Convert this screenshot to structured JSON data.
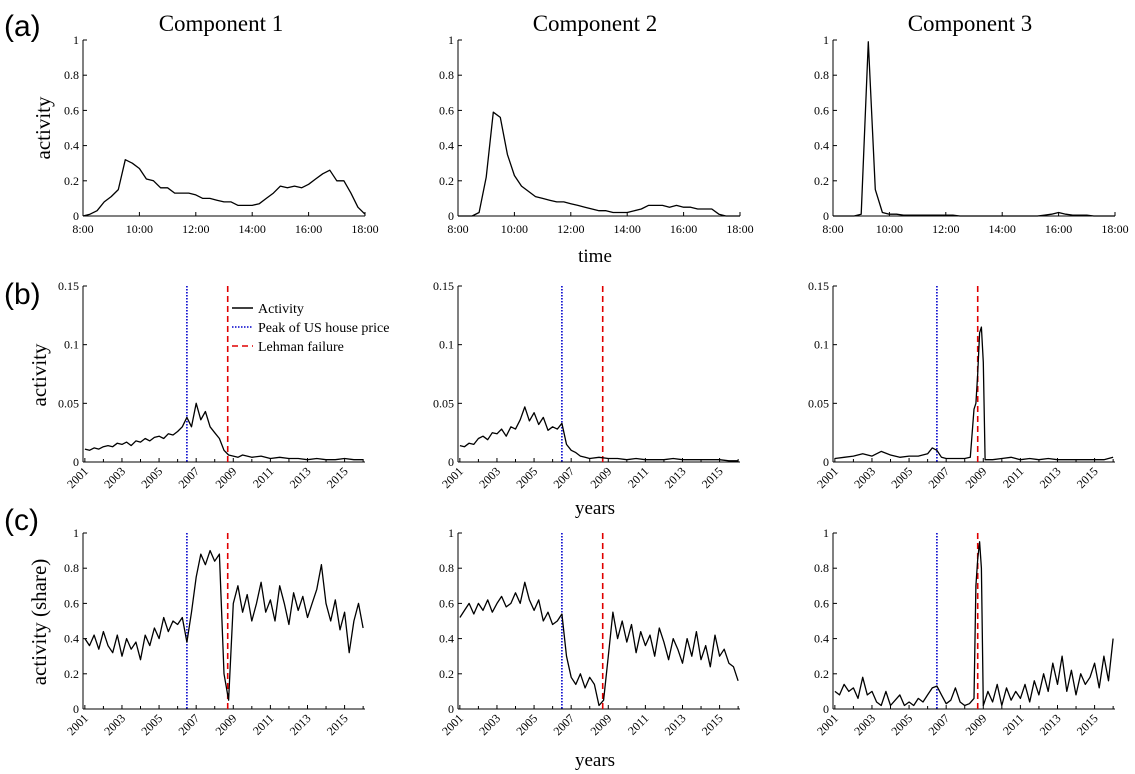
{
  "panel_labels": [
    "(a)",
    "(b)",
    "(c)"
  ],
  "column_titles": [
    "Component 1",
    "Component 2",
    "Component 3"
  ],
  "row_labels": {
    "a": {
      "ylabel": "activity",
      "xlabel": "time"
    },
    "b": {
      "ylabel": "activity",
      "xlabel": "years"
    },
    "c": {
      "ylabel": "activity (share)",
      "xlabel": "years"
    }
  },
  "legend": {
    "activity": "Activity",
    "house_peak": "Peak of US house price",
    "lehman": "Lehman failure"
  },
  "colors": {
    "activity": "#000000",
    "house_peak": "#0000cc",
    "lehman": "#e00000"
  },
  "chart_data": [
    {
      "type": "line",
      "row": "a",
      "component": 1,
      "xtype": "time",
      "title": "Component 1",
      "ylabel": "activity",
      "xlabel": "",
      "xlim": [
        8,
        18
      ],
      "ylim": [
        0,
        1
      ],
      "xticks": [
        "8:00",
        "10:00",
        "12:00",
        "14:00",
        "16:00",
        "18:00"
      ],
      "yticks": [
        "0",
        "0.2",
        "0.4",
        "0.6",
        "0.8",
        "1"
      ],
      "x": [
        8,
        8.25,
        8.5,
        8.75,
        9,
        9.25,
        9.5,
        9.75,
        10,
        10.25,
        10.5,
        10.75,
        11,
        11.25,
        11.5,
        11.75,
        12,
        12.25,
        12.5,
        12.75,
        13,
        13.25,
        13.5,
        13.75,
        14,
        14.25,
        14.5,
        14.75,
        15,
        15.25,
        15.5,
        15.75,
        16,
        16.25,
        16.5,
        16.75,
        17,
        17.25,
        17.5,
        17.75,
        18
      ],
      "values": [
        0,
        0.01,
        0.03,
        0.08,
        0.11,
        0.15,
        0.32,
        0.3,
        0.27,
        0.21,
        0.2,
        0.16,
        0.16,
        0.13,
        0.13,
        0.13,
        0.12,
        0.1,
        0.1,
        0.09,
        0.08,
        0.08,
        0.06,
        0.06,
        0.06,
        0.07,
        0.1,
        0.13,
        0.17,
        0.16,
        0.17,
        0.16,
        0.18,
        0.21,
        0.24,
        0.26,
        0.2,
        0.2,
        0.13,
        0.05,
        0.01
      ]
    },
    {
      "type": "line",
      "row": "a",
      "component": 2,
      "xtype": "time",
      "title": "Component 2",
      "ylabel": "",
      "xlabel": "time",
      "xlim": [
        8,
        18
      ],
      "ylim": [
        0,
        1
      ],
      "xticks": [
        "8:00",
        "10:00",
        "12:00",
        "14:00",
        "16:00",
        "18:00"
      ],
      "yticks": [
        "0",
        "0.2",
        "0.4",
        "0.6",
        "0.8",
        "1"
      ],
      "x": [
        8,
        8.25,
        8.5,
        8.75,
        9,
        9.25,
        9.5,
        9.75,
        10,
        10.25,
        10.5,
        10.75,
        11,
        11.25,
        11.5,
        11.75,
        12,
        12.25,
        12.5,
        12.75,
        13,
        13.25,
        13.5,
        13.75,
        14,
        14.25,
        14.5,
        14.75,
        15,
        15.25,
        15.5,
        15.75,
        16,
        16.25,
        16.5,
        16.75,
        17,
        17.25,
        17.5,
        17.75,
        18
      ],
      "values": [
        0,
        0,
        0,
        0.02,
        0.22,
        0.59,
        0.56,
        0.35,
        0.23,
        0.17,
        0.14,
        0.11,
        0.1,
        0.09,
        0.08,
        0.08,
        0.07,
        0.06,
        0.05,
        0.04,
        0.03,
        0.03,
        0.02,
        0.02,
        0.02,
        0.03,
        0.04,
        0.06,
        0.06,
        0.06,
        0.05,
        0.06,
        0.05,
        0.05,
        0.04,
        0.04,
        0.04,
        0.01,
        0,
        0,
        0
      ]
    },
    {
      "type": "line",
      "row": "a",
      "component": 3,
      "xtype": "time",
      "title": "Component 3",
      "ylabel": "",
      "xlabel": "",
      "xlim": [
        8,
        18
      ],
      "ylim": [
        0,
        1
      ],
      "xticks": [
        "8:00",
        "10:00",
        "12:00",
        "14:00",
        "16:00",
        "18:00"
      ],
      "yticks": [
        "0",
        "0.2",
        "0.4",
        "0.6",
        "0.8",
        "1"
      ],
      "x": [
        8,
        8.25,
        8.5,
        8.75,
        9,
        9.25,
        9.5,
        9.75,
        10,
        10.25,
        10.5,
        10.75,
        11,
        11.25,
        11.5,
        11.75,
        12,
        12.25,
        12.5,
        12.75,
        13,
        13.25,
        13.5,
        13.75,
        14,
        14.25,
        14.5,
        14.75,
        15,
        15.25,
        15.5,
        15.75,
        16,
        16.25,
        16.5,
        16.75,
        17,
        17.25,
        17.5,
        17.75,
        18
      ],
      "values": [
        0,
        0,
        0,
        0,
        0.01,
        0.99,
        0.15,
        0.02,
        0.01,
        0.01,
        0.005,
        0.005,
        0.005,
        0.005,
        0.005,
        0.005,
        0.005,
        0.005,
        0,
        0,
        0,
        0,
        0,
        0,
        0,
        0,
        0,
        0,
        0,
        0,
        0.005,
        0.01,
        0.02,
        0.01,
        0.005,
        0.005,
        0.005,
        0,
        0,
        0,
        0
      ]
    },
    {
      "type": "line",
      "row": "b",
      "component": 1,
      "xtype": "years",
      "title": "",
      "ylabel": "activity",
      "xlabel": "",
      "xlim": [
        2000.9,
        2016.1
      ],
      "ylim": [
        0,
        0.15
      ],
      "xticks": [
        "2001",
        "2003",
        "2005",
        "2007",
        "2009",
        "2011",
        "2013",
        "2015"
      ],
      "yticks": [
        "0",
        "0.05",
        "0.1",
        "0.15"
      ],
      "vlines": {
        "house_peak": 2006.5,
        "lehman": 2008.7
      },
      "show_legend": true,
      "x": [
        2001,
        2001.25,
        2001.5,
        2001.75,
        2002,
        2002.25,
        2002.5,
        2002.75,
        2003,
        2003.25,
        2003.5,
        2003.75,
        2004,
        2004.25,
        2004.5,
        2004.75,
        2005,
        2005.25,
        2005.5,
        2005.75,
        2006,
        2006.25,
        2006.5,
        2006.75,
        2007,
        2007.25,
        2007.5,
        2007.75,
        2008,
        2008.25,
        2008.5,
        2008.75,
        2009,
        2009.25,
        2009.5,
        2009.75,
        2010,
        2010.5,
        2011,
        2011.5,
        2012,
        2012.5,
        2013,
        2013.5,
        2014,
        2014.5,
        2015,
        2015.5,
        2016
      ],
      "values": [
        0.011,
        0.01,
        0.012,
        0.011,
        0.013,
        0.014,
        0.013,
        0.016,
        0.015,
        0.017,
        0.014,
        0.018,
        0.017,
        0.02,
        0.018,
        0.021,
        0.022,
        0.02,
        0.024,
        0.023,
        0.026,
        0.03,
        0.038,
        0.03,
        0.05,
        0.036,
        0.043,
        0.03,
        0.025,
        0.02,
        0.01,
        0.006,
        0.005,
        0.004,
        0.006,
        0.005,
        0.004,
        0.005,
        0.003,
        0.004,
        0.003,
        0.003,
        0.002,
        0.003,
        0.002,
        0.002,
        0.003,
        0.002,
        0.002
      ]
    },
    {
      "type": "line",
      "row": "b",
      "component": 2,
      "xtype": "years",
      "title": "",
      "ylabel": "",
      "xlabel": "years",
      "xlim": [
        2000.9,
        2016.1
      ],
      "ylim": [
        0,
        0.15
      ],
      "xticks": [
        "2001",
        "2003",
        "2005",
        "2007",
        "2009",
        "2011",
        "2013",
        "2015"
      ],
      "yticks": [
        "0",
        "0.05",
        "0.1",
        "0.15"
      ],
      "vlines": {
        "house_peak": 2006.5,
        "lehman": 2008.7
      },
      "x": [
        2001,
        2001.25,
        2001.5,
        2001.75,
        2002,
        2002.25,
        2002.5,
        2002.75,
        2003,
        2003.25,
        2003.5,
        2003.75,
        2004,
        2004.25,
        2004.5,
        2004.75,
        2005,
        2005.25,
        2005.5,
        2005.75,
        2006,
        2006.25,
        2006.5,
        2006.75,
        2007,
        2007.25,
        2007.5,
        2007.75,
        2008,
        2008.5,
        2009,
        2009.5,
        2010,
        2010.5,
        2011,
        2011.5,
        2012,
        2012.5,
        2013,
        2013.5,
        2014,
        2014.5,
        2015,
        2015.5,
        2016
      ],
      "values": [
        0.014,
        0.013,
        0.016,
        0.015,
        0.02,
        0.022,
        0.019,
        0.025,
        0.024,
        0.028,
        0.022,
        0.03,
        0.028,
        0.036,
        0.047,
        0.035,
        0.042,
        0.032,
        0.038,
        0.027,
        0.03,
        0.028,
        0.033,
        0.015,
        0.01,
        0.008,
        0.005,
        0.004,
        0.003,
        0.004,
        0.003,
        0.003,
        0.002,
        0.003,
        0.002,
        0.002,
        0.002,
        0.003,
        0.002,
        0.002,
        0.002,
        0.002,
        0.002,
        0.001,
        0.001
      ]
    },
    {
      "type": "line",
      "row": "b",
      "component": 3,
      "xtype": "years",
      "title": "",
      "ylabel": "",
      "xlabel": "",
      "xlim": [
        2000.9,
        2016.1
      ],
      "ylim": [
        0,
        0.15
      ],
      "xticks": [
        "2001",
        "2003",
        "2005",
        "2007",
        "2009",
        "2011",
        "2013",
        "2015"
      ],
      "yticks": [
        "0",
        "0.05",
        "0.1",
        "0.15"
      ],
      "vlines": {
        "house_peak": 2006.5,
        "lehman": 2008.7
      },
      "x": [
        2001,
        2001.5,
        2002,
        2002.5,
        2003,
        2003.5,
        2004,
        2004.5,
        2005,
        2005.5,
        2006,
        2006.25,
        2006.5,
        2006.75,
        2007,
        2007.5,
        2008,
        2008.3,
        2008.5,
        2008.6,
        2008.7,
        2008.8,
        2008.9,
        2009,
        2009.1,
        2009.5,
        2010,
        2010.5,
        2011,
        2011.5,
        2012,
        2012.5,
        2013,
        2013.5,
        2014,
        2014.5,
        2015,
        2015.5,
        2016
      ],
      "values": [
        0.003,
        0.004,
        0.005,
        0.007,
        0.005,
        0.009,
        0.006,
        0.004,
        0.005,
        0.005,
        0.007,
        0.012,
        0.01,
        0.004,
        0.003,
        0.003,
        0.003,
        0.004,
        0.045,
        0.05,
        0.075,
        0.11,
        0.115,
        0.085,
        0.002,
        0.002,
        0.003,
        0.004,
        0.002,
        0.003,
        0.002,
        0.003,
        0.002,
        0.002,
        0.002,
        0.002,
        0.002,
        0.002,
        0.004
      ]
    },
    {
      "type": "line",
      "row": "c",
      "component": 1,
      "xtype": "years",
      "title": "",
      "ylabel": "activity (share)",
      "xlabel": "",
      "xlim": [
        2000.9,
        2016.1
      ],
      "ylim": [
        0,
        1
      ],
      "xticks": [
        "2001",
        "2003",
        "2005",
        "2007",
        "2009",
        "2011",
        "2013",
        "2015"
      ],
      "yticks": [
        "0",
        "0.2",
        "0.4",
        "0.6",
        "0.8",
        "1"
      ],
      "vlines": {
        "house_peak": 2006.5,
        "lehman": 2008.7
      },
      "x": [
        2001,
        2001.25,
        2001.5,
        2001.75,
        2002,
        2002.25,
        2002.5,
        2002.75,
        2003,
        2003.25,
        2003.5,
        2003.75,
        2004,
        2004.25,
        2004.5,
        2004.75,
        2005,
        2005.25,
        2005.5,
        2005.75,
        2006,
        2006.25,
        2006.5,
        2006.75,
        2007,
        2007.25,
        2007.5,
        2007.75,
        2008,
        2008.25,
        2008.5,
        2008.75,
        2009,
        2009.25,
        2009.5,
        2009.75,
        2010,
        2010.25,
        2010.5,
        2010.75,
        2011,
        2011.25,
        2011.5,
        2011.75,
        2012,
        2012.25,
        2012.5,
        2012.75,
        2013,
        2013.25,
        2013.5,
        2013.75,
        2014,
        2014.25,
        2014.5,
        2014.75,
        2015,
        2015.25,
        2015.5,
        2015.75,
        2016
      ],
      "values": [
        0.4,
        0.36,
        0.42,
        0.34,
        0.44,
        0.36,
        0.32,
        0.42,
        0.3,
        0.4,
        0.34,
        0.38,
        0.28,
        0.42,
        0.36,
        0.46,
        0.4,
        0.52,
        0.44,
        0.5,
        0.48,
        0.52,
        0.38,
        0.55,
        0.75,
        0.88,
        0.82,
        0.9,
        0.84,
        0.88,
        0.2,
        0.05,
        0.6,
        0.7,
        0.55,
        0.65,
        0.5,
        0.6,
        0.72,
        0.55,
        0.62,
        0.5,
        0.7,
        0.6,
        0.48,
        0.66,
        0.56,
        0.64,
        0.52,
        0.6,
        0.68,
        0.82,
        0.6,
        0.5,
        0.62,
        0.45,
        0.55,
        0.32,
        0.5,
        0.6,
        0.46
      ]
    },
    {
      "type": "line",
      "row": "c",
      "component": 2,
      "xtype": "years",
      "title": "",
      "ylabel": "",
      "xlabel": "years",
      "xlim": [
        2000.9,
        2016.1
      ],
      "ylim": [
        0,
        1
      ],
      "xticks": [
        "2001",
        "2003",
        "2005",
        "2007",
        "2009",
        "2011",
        "2013",
        "2015"
      ],
      "yticks": [
        "0",
        "0.2",
        "0.4",
        "0.6",
        "0.8",
        "1"
      ],
      "vlines": {
        "house_peak": 2006.5,
        "lehman": 2008.7
      },
      "x": [
        2001,
        2001.25,
        2001.5,
        2001.75,
        2002,
        2002.25,
        2002.5,
        2002.75,
        2003,
        2003.25,
        2003.5,
        2003.75,
        2004,
        2004.25,
        2004.5,
        2004.75,
        2005,
        2005.25,
        2005.5,
        2005.75,
        2006,
        2006.25,
        2006.5,
        2006.75,
        2007,
        2007.25,
        2007.5,
        2007.75,
        2008,
        2008.25,
        2008.5,
        2008.75,
        2009,
        2009.25,
        2009.5,
        2009.75,
        2010,
        2010.25,
        2010.5,
        2010.75,
        2011,
        2011.25,
        2011.5,
        2011.75,
        2012,
        2012.25,
        2012.5,
        2012.75,
        2013,
        2013.25,
        2013.5,
        2013.75,
        2014,
        2014.25,
        2014.5,
        2014.75,
        2015,
        2015.25,
        2015.5,
        2015.75,
        2016
      ],
      "values": [
        0.52,
        0.56,
        0.6,
        0.54,
        0.6,
        0.56,
        0.62,
        0.55,
        0.6,
        0.64,
        0.58,
        0.6,
        0.66,
        0.6,
        0.72,
        0.62,
        0.56,
        0.62,
        0.5,
        0.55,
        0.48,
        0.5,
        0.54,
        0.3,
        0.18,
        0.14,
        0.2,
        0.12,
        0.18,
        0.14,
        0.02,
        0.05,
        0.3,
        0.55,
        0.4,
        0.5,
        0.38,
        0.48,
        0.32,
        0.44,
        0.36,
        0.42,
        0.3,
        0.46,
        0.38,
        0.28,
        0.4,
        0.34,
        0.26,
        0.4,
        0.3,
        0.44,
        0.28,
        0.36,
        0.24,
        0.42,
        0.3,
        0.34,
        0.26,
        0.24,
        0.16
      ]
    },
    {
      "type": "line",
      "row": "c",
      "component": 3,
      "xtype": "years",
      "title": "",
      "ylabel": "",
      "xlabel": "",
      "xlim": [
        2000.9,
        2016.1
      ],
      "ylim": [
        0,
        1
      ],
      "xticks": [
        "2001",
        "2003",
        "2005",
        "2007",
        "2009",
        "2011",
        "2013",
        "2015"
      ],
      "yticks": [
        "0",
        "0.2",
        "0.4",
        "0.6",
        "0.8",
        "1"
      ],
      "vlines": {
        "house_peak": 2006.5,
        "lehman": 2008.7
      },
      "x": [
        2001,
        2001.25,
        2001.5,
        2001.75,
        2002,
        2002.25,
        2002.5,
        2002.75,
        2003,
        2003.25,
        2003.5,
        2003.75,
        2004,
        2004.25,
        2004.5,
        2004.75,
        2005,
        2005.25,
        2005.5,
        2005.75,
        2006,
        2006.25,
        2006.5,
        2006.75,
        2007,
        2007.25,
        2007.5,
        2007.75,
        2008,
        2008.25,
        2008.5,
        2008.6,
        2008.7,
        2008.8,
        2008.9,
        2009,
        2009.1,
        2009.25,
        2009.5,
        2009.75,
        2010,
        2010.25,
        2010.5,
        2010.75,
        2011,
        2011.25,
        2011.5,
        2011.75,
        2012,
        2012.25,
        2012.5,
        2012.75,
        2013,
        2013.25,
        2013.5,
        2013.75,
        2014,
        2014.25,
        2014.5,
        2014.75,
        2015,
        2015.25,
        2015.5,
        2015.75,
        2016
      ],
      "values": [
        0.1,
        0.08,
        0.14,
        0.1,
        0.12,
        0.06,
        0.18,
        0.08,
        0.1,
        0.04,
        0.02,
        0.1,
        0.02,
        0.05,
        0.08,
        0.02,
        0.04,
        0.02,
        0.06,
        0.04,
        0.08,
        0.12,
        0.13,
        0.08,
        0.03,
        0.05,
        0.12,
        0.04,
        0.02,
        0.03,
        0.06,
        0.7,
        0.85,
        0.95,
        0.8,
        0.02,
        0.05,
        0.1,
        0.04,
        0.14,
        0.02,
        0.12,
        0.05,
        0.1,
        0.06,
        0.14,
        0.04,
        0.16,
        0.08,
        0.2,
        0.1,
        0.26,
        0.14,
        0.3,
        0.1,
        0.22,
        0.08,
        0.2,
        0.14,
        0.18,
        0.26,
        0.12,
        0.3,
        0.16,
        0.4
      ]
    }
  ]
}
